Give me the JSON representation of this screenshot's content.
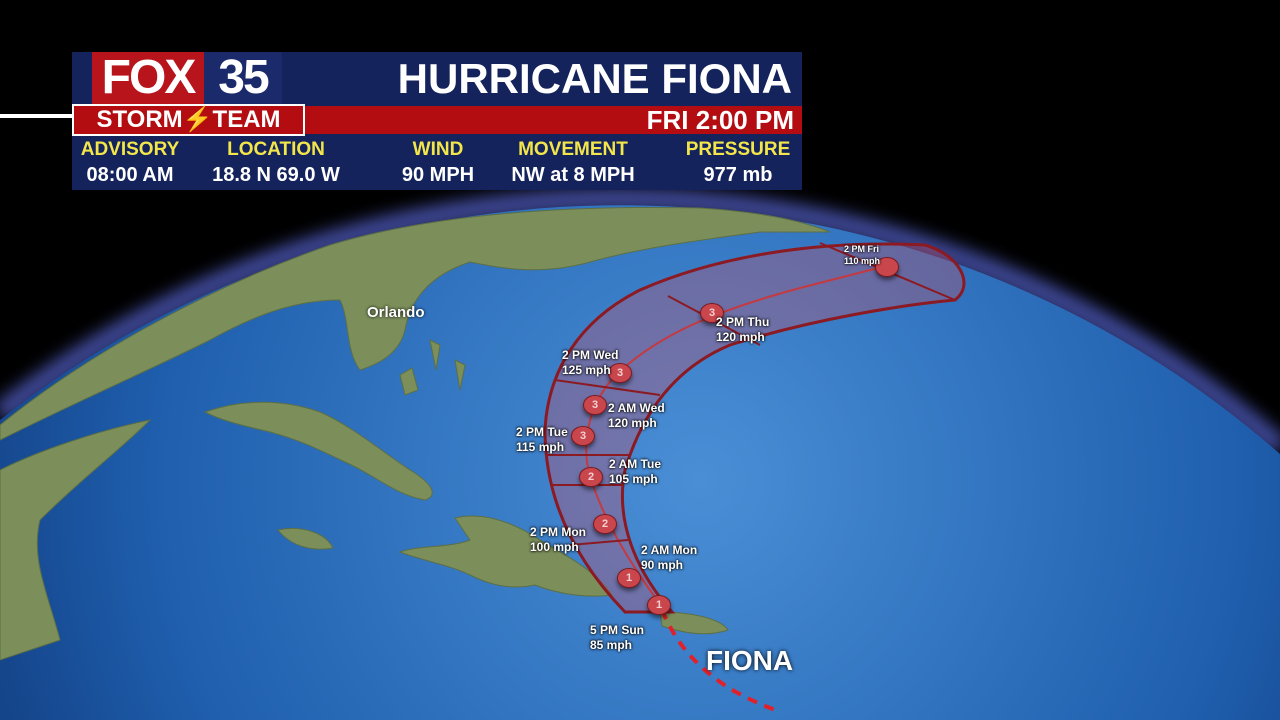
{
  "header": {
    "logo_fox": "FOX",
    "logo_number": "35",
    "storm_team": "STORM⚡TEAM",
    "title": "HURRICANE FIONA",
    "time": "FRI 2:00 PM"
  },
  "advisory": [
    {
      "label": "ADVISORY",
      "value": "08:00 AM"
    },
    {
      "label": "LOCATION",
      "value": "18.8 N 69.0 W"
    },
    {
      "label": "WIND",
      "value": "90 MPH"
    },
    {
      "label": "MOVEMENT",
      "value": "NW at 8 MPH"
    },
    {
      "label": "PRESSURE",
      "value": "977 mb"
    }
  ],
  "map": {
    "city": "Orlando",
    "storm_name": "FIONA",
    "colors": {
      "ocean": "#2a6cb8",
      "land": "#7c8f5a",
      "cone": "#c0303a",
      "track_past": "#e0202a"
    },
    "forecast_points": [
      {
        "time": "5 PM Sun",
        "wind": "85 mph",
        "category": "1"
      },
      {
        "time": "2 AM Mon",
        "wind": "90 mph",
        "category": "1"
      },
      {
        "time": "2 PM Mon",
        "wind": "100 mph",
        "category": "2"
      },
      {
        "time": "2 AM Tue",
        "wind": "105 mph",
        "category": "2"
      },
      {
        "time": "2 PM Tue",
        "wind": "115 mph",
        "category": "3"
      },
      {
        "time": "2 AM Wed",
        "wind": "120 mph",
        "category": "3"
      },
      {
        "time": "2 PM Wed",
        "wind": "125 mph",
        "category": "3"
      },
      {
        "time": "2 PM Thu",
        "wind": "120 mph",
        "category": "3"
      },
      {
        "time": "2 PM Fri",
        "wind": "110 mph",
        "category": ""
      }
    ]
  }
}
